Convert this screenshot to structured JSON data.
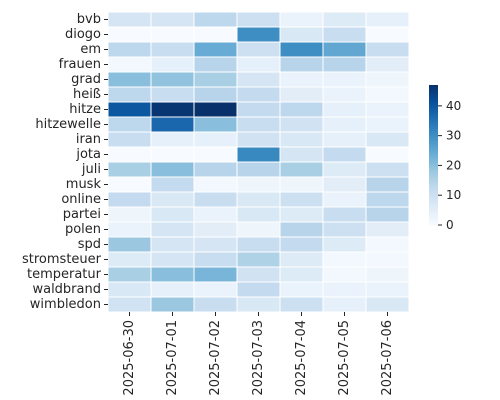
{
  "chart_data": {
    "type": "heatmap",
    "title": "",
    "xlabel": "",
    "ylabel": "",
    "x": [
      "2025-06-30",
      "2025-07-01",
      "2025-07-02",
      "2025-07-03",
      "2025-07-04",
      "2025-07-05",
      "2025-07-06"
    ],
    "y": [
      "bvb",
      "diogo",
      "em",
      "frauen",
      "grad",
      "heiß",
      "hitze",
      "hitzewelle",
      "iran",
      "jota",
      "juli",
      "musk",
      "online",
      "partei",
      "polen",
      "spd",
      "stromsteuer",
      "temperatur",
      "waldbrand",
      "wimbledon"
    ],
    "values": [
      [
        8,
        8,
        13,
        10,
        3,
        6,
        4
      ],
      [
        0,
        0,
        0,
        30,
        7,
        11,
        0
      ],
      [
        13,
        11,
        24,
        10,
        30,
        25,
        11
      ],
      [
        1,
        4,
        14,
        4,
        14,
        14,
        5
      ],
      [
        20,
        19,
        16,
        8,
        3,
        3,
        2
      ],
      [
        13,
        11,
        14,
        12,
        5,
        3,
        1
      ],
      [
        40,
        46,
        47,
        12,
        13,
        4,
        3
      ],
      [
        13,
        37,
        20,
        11,
        9,
        4,
        3
      ],
      [
        11,
        4,
        4,
        9,
        7,
        4,
        7
      ],
      [
        0,
        0,
        0,
        31,
        8,
        12,
        0
      ],
      [
        16,
        20,
        14,
        14,
        16,
        6,
        10
      ],
      [
        0,
        12,
        1,
        2,
        2,
        5,
        14
      ],
      [
        12,
        7,
        11,
        7,
        10,
        3,
        13
      ],
      [
        2,
        7,
        3,
        7,
        6,
        11,
        14
      ],
      [
        3,
        8,
        5,
        2,
        14,
        10,
        5
      ],
      [
        18,
        8,
        8,
        11,
        12,
        6,
        1
      ],
      [
        6,
        8,
        11,
        15,
        6,
        1,
        1
      ],
      [
        16,
        20,
        22,
        9,
        6,
        1,
        2
      ],
      [
        7,
        4,
        3,
        12,
        3,
        3,
        3
      ],
      [
        9,
        18,
        11,
        7,
        10,
        4,
        7
      ]
    ],
    "colorscale": "Blues",
    "vmin": 0,
    "vmax": 47,
    "colorbar_ticks": [
      0,
      10,
      20,
      30,
      40
    ],
    "grid": false,
    "cell_border_color": "#ffffff"
  }
}
